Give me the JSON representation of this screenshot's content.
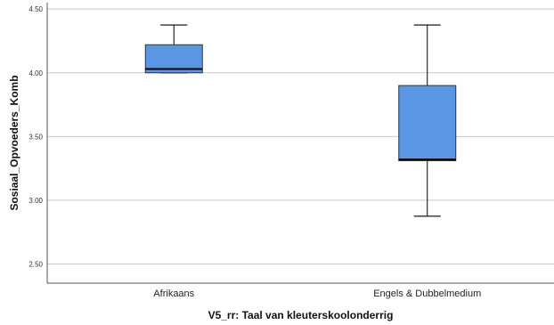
{
  "chart_data": {
    "type": "boxplot",
    "xlabel": "V5_rr: Taal van kleuterskoolonderrig",
    "ylabel": "Sosiaal_Opvoeders_Komb",
    "ylim": [
      2.35,
      4.55
    ],
    "yticks": [
      2.5,
      3.0,
      3.5,
      4.0,
      4.5
    ],
    "ytick_labels": [
      "2.50",
      "3.00",
      "3.50",
      "4.00",
      "4.50"
    ],
    "grid": "horizontal",
    "categories": [
      "Afrikaans",
      "Engels & Dubbelmedium"
    ],
    "boxes": [
      {
        "category": "Afrikaans",
        "min": 4.0,
        "q1": 4.0,
        "median": 4.03,
        "q3": 4.22,
        "max": 4.375
      },
      {
        "category": "Engels & Dubbelmedium",
        "min": 2.875,
        "q1": 3.31,
        "median": 3.32,
        "q3": 3.9,
        "max": 4.375
      }
    ],
    "colors": {
      "box_fill": "#5a96e3",
      "gridline": "#c8c8c8",
      "axis": "#555555",
      "stroke": "#000000"
    }
  }
}
